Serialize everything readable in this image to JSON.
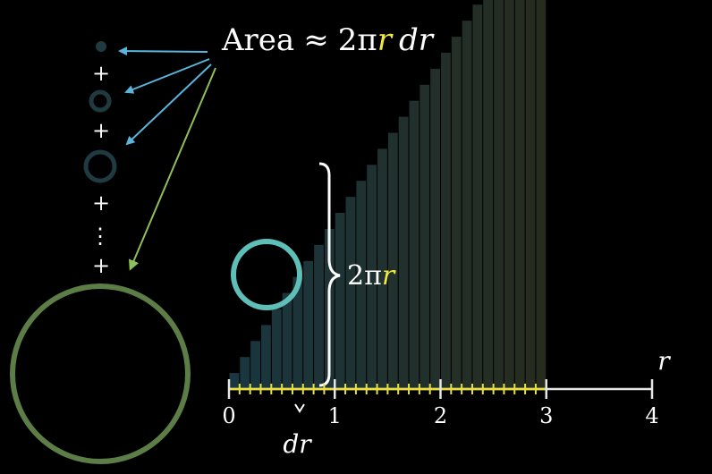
{
  "formula": {
    "area_word": "Area",
    "approx": "≈",
    "two_pi": "2π",
    "r": "r",
    "dr": "dr"
  },
  "brace_label": {
    "two_pi": "2π",
    "r": "r"
  },
  "plus_sign": "+",
  "vertical_ellipsis": "⋮",
  "axis": {
    "variable": "r",
    "ticks": [
      "0",
      "1",
      "2",
      "3",
      "4"
    ],
    "dr_label": "dr",
    "range": [
      0,
      4
    ],
    "minor_ticks_per_unit": 10
  },
  "colors": {
    "background": "#000000",
    "text": "#ffffff",
    "highlight_r": "#f2e640",
    "arrow_blue": "#5ab4dc",
    "arrow_green": "#8fbf5a",
    "small_rings": "#1f3a40",
    "big_ring": "#5c7d45",
    "cyan_circle": "#5ebfb8",
    "axis_line": "#e6e6e6",
    "axis_minor_ticks": "#e8e040"
  }
}
